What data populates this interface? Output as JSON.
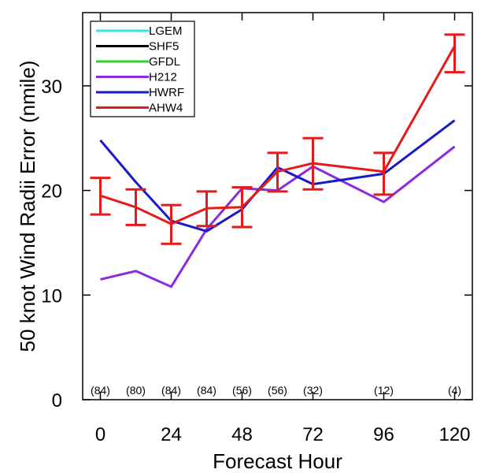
{
  "chart_data": {
    "type": "line",
    "xlabel": "Forecast Hour",
    "ylabel": "50 knot Wind Radii Error (nmile)",
    "xlim": [
      -6,
      126
    ],
    "ylim": [
      0,
      37
    ],
    "xticks": [
      0,
      24,
      48,
      72,
      96,
      120
    ],
    "yticks": [
      0,
      10,
      20,
      30
    ],
    "grid": false,
    "legend_position": "top-left",
    "series": [
      {
        "name": "LGEM",
        "color": "#33e6e6",
        "x": [],
        "y": []
      },
      {
        "name": "SHF5",
        "color": "#000000",
        "x": [],
        "y": []
      },
      {
        "name": "GFDL",
        "color": "#33cc33",
        "x": [],
        "y": []
      },
      {
        "name": "H212",
        "color": "#8a2be2",
        "x": [
          0,
          12,
          24,
          36,
          48,
          60,
          72,
          96,
          120
        ],
        "y": [
          11.5,
          12.3,
          10.8,
          16.3,
          20.2,
          20.0,
          22.3,
          18.9,
          24.2
        ]
      },
      {
        "name": "HWRF",
        "color": "#1a1acc",
        "x": [
          0,
          12,
          24,
          36,
          48,
          60,
          72,
          96,
          120
        ],
        "y": [
          24.8,
          20.8,
          17.1,
          16.1,
          18.2,
          22.2,
          20.6,
          21.6,
          26.7
        ]
      },
      {
        "name": "AHW4",
        "color": "#e61a1a",
        "x": [
          0,
          12,
          24,
          36,
          48,
          60,
          72,
          96,
          120
        ],
        "y": [
          19.5,
          18.4,
          16.8,
          18.3,
          18.4,
          21.8,
          22.6,
          21.8,
          33.8
        ],
        "error_low": [
          17.7,
          16.7,
          14.9,
          16.6,
          16.5,
          19.9,
          20.1,
          19.6,
          31.3
        ],
        "error_high": [
          21.2,
          20.1,
          18.6,
          19.9,
          20.3,
          23.6,
          25.0,
          23.6,
          34.9
        ]
      }
    ],
    "sample_counts": {
      "x": [
        0,
        12,
        24,
        36,
        48,
        60,
        72,
        96,
        120
      ],
      "labels": [
        "(84)",
        "(80)",
        "(84)",
        "(84)",
        "(56)",
        "(56)",
        "(32)",
        "(12)",
        "(4)"
      ]
    }
  }
}
